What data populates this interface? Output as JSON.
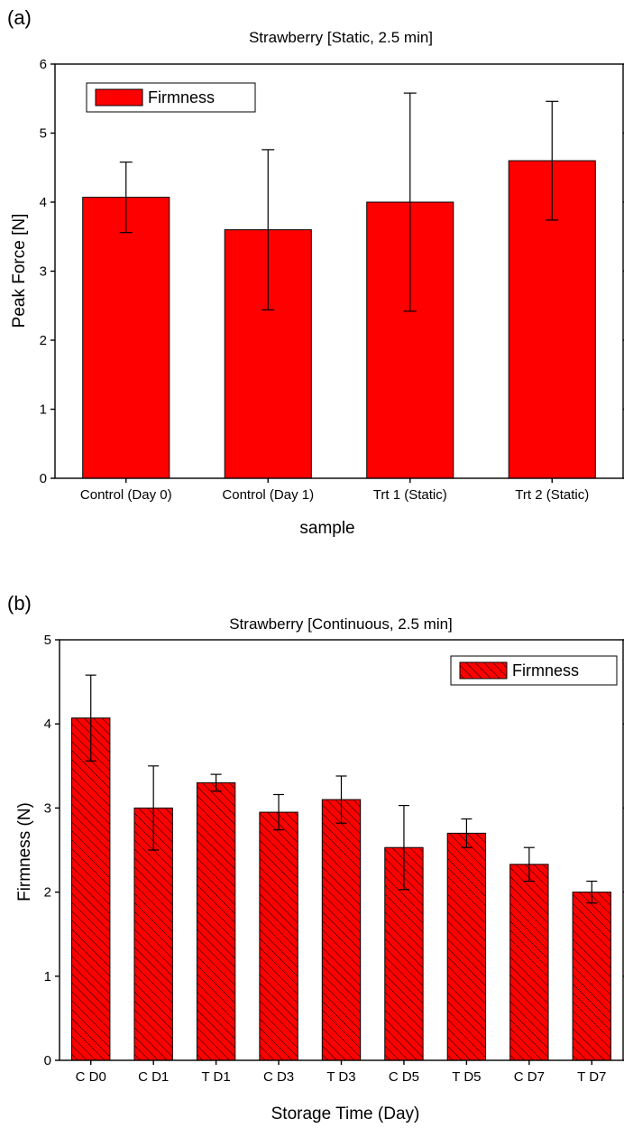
{
  "chart_data": [
    {
      "panel_label": "(a)",
      "type": "bar",
      "title": "Strawberry [Static, 2.5 min]",
      "xlabel": "sample",
      "ylabel": "Peak Force [N]",
      "ylim": [
        0,
        6
      ],
      "yticks": [
        "0",
        "1",
        "2",
        "3",
        "4",
        "5",
        "6"
      ],
      "categories": [
        "Control (Day 0)",
        "Control (Day 1)",
        "Trt 1 (Static)",
        "Trt 2 (Static)"
      ],
      "series": [
        {
          "name": "Firmness",
          "values": [
            4.07,
            3.6,
            4.0,
            4.6
          ],
          "errors": [
            0.51,
            1.16,
            1.58,
            0.86
          ]
        }
      ],
      "fill": "solid",
      "color": "#ff0000",
      "legend": "top-left",
      "grid": false
    },
    {
      "panel_label": "(b)",
      "type": "bar",
      "title": "Strawberry [Continuous, 2.5 min]",
      "xlabel": "Storage Time (Day)",
      "ylabel": "Firmness (N)",
      "ylim": [
        0,
        5
      ],
      "yticks": [
        "0",
        "1",
        "2",
        "3",
        "4",
        "5"
      ],
      "categories": [
        "C D0",
        "C D1",
        "T D1",
        "C D3",
        "T D3",
        "C D5",
        "T D5",
        "C D7",
        "T D7"
      ],
      "series": [
        {
          "name": "Firmness",
          "values": [
            4.07,
            3.0,
            3.3,
            2.95,
            3.1,
            2.53,
            2.7,
            2.33,
            2.0
          ],
          "errors": [
            0.51,
            0.5,
            0.1,
            0.21,
            0.28,
            0.5,
            0.17,
            0.2,
            0.13
          ]
        }
      ],
      "fill": "hatched",
      "color": "#ff0000",
      "legend": "top-right",
      "grid": false
    }
  ]
}
